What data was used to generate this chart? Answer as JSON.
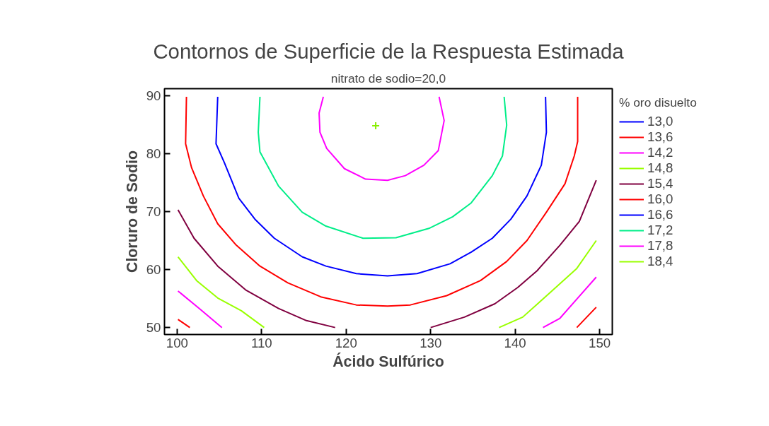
{
  "chart_data": {
    "type": "line",
    "title": "Contornos de Superficie de la Respuesta Estimada",
    "subtitle": "nitrato de sodio=20,0",
    "xlabel": "Ácido Sulfúrico",
    "ylabel": "Cloruro de Sodio",
    "legend_title": "% oro disuelto",
    "legend": "right",
    "grid": false,
    "xlim": [
      98.5,
      151.5
    ],
    "ylim": [
      48.8,
      91.2
    ],
    "xticks": [
      100,
      110,
      120,
      130,
      140,
      150
    ],
    "yticks": [
      50,
      60,
      70,
      80,
      90
    ],
    "series": [
      {
        "name": "13,0",
        "color": "#0000ff"
      },
      {
        "name": "13,6",
        "color": "#ff0000",
        "x": [
          100.1,
          101.5,
          null,
          147.3,
          149.6
        ],
        "values": [
          51.4,
          50.0,
          null,
          50.0,
          53.5
        ]
      },
      {
        "name": "14,2",
        "color": "#ff00ff",
        "x": [
          100.1,
          102.6,
          105.3,
          null,
          143.3,
          145.3,
          147.3,
          149.6
        ],
        "values": [
          56.3,
          53.3,
          50.0,
          null,
          50.0,
          51.6,
          54.9,
          58.7
        ]
      },
      {
        "name": "14,8",
        "color": "#99ff00",
        "x": [
          100.1,
          102.3,
          104.8,
          107.6,
          110.3,
          null,
          138.1,
          140.9,
          144.2,
          147.3,
          149.6
        ],
        "values": [
          62.2,
          58.1,
          55.1,
          52.9,
          50.0,
          null,
          50.0,
          51.8,
          56.1,
          60.2,
          65.0
        ]
      },
      {
        "name": "15,4",
        "color": "#800040",
        "x": [
          100.1,
          102.0,
          104.8,
          108.1,
          112.0,
          115.3,
          118.7,
          null,
          130.0,
          134.0,
          137.6,
          140.3,
          142.6,
          145.3,
          147.6,
          149.6
        ],
        "values": [
          70.3,
          65.4,
          60.6,
          56.5,
          53.3,
          51.2,
          50.0,
          null,
          50.0,
          51.8,
          54.1,
          56.9,
          59.8,
          64.2,
          68.3,
          75.4
        ]
      },
      {
        "name": "16,0",
        "color": "#ff0000",
        "x": [
          101.1,
          101.0,
          101.7,
          103.1,
          104.8,
          107.0,
          109.8,
          113.1,
          117.0,
          121.2,
          124.9,
          127.6,
          131.9,
          135.9,
          139.0,
          141.4,
          143.7,
          145.9,
          147.0,
          147.4,
          147.4
        ],
        "values": [
          89.8,
          81.7,
          77.6,
          72.7,
          67.9,
          64.2,
          60.6,
          57.7,
          55.3,
          53.9,
          53.7,
          53.9,
          55.5,
          58.1,
          61.4,
          65.0,
          69.9,
          74.8,
          79.6,
          82.1,
          89.8
        ]
      },
      {
        "name": "16,6",
        "color": "#0000ff",
        "x": [
          104.8,
          104.6,
          105.6,
          107.3,
          109.2,
          111.5,
          114.8,
          117.6,
          121.2,
          124.9,
          128.4,
          132.3,
          134.8,
          137.3,
          139.5,
          141.4,
          143.1,
          143.7,
          143.6
        ],
        "values": [
          89.8,
          81.7,
          78.4,
          72.3,
          68.7,
          65.4,
          62.2,
          60.6,
          59.3,
          58.9,
          59.3,
          61.0,
          63.0,
          65.4,
          68.7,
          72.7,
          78.0,
          83.7,
          89.8
        ]
      },
      {
        "name": "17,2",
        "color": "#00ee88",
        "x": [
          109.8,
          109.6,
          109.8,
          112.0,
          114.8,
          117.6,
          122.0,
          125.9,
          129.8,
          132.6,
          134.8,
          137.3,
          138.5,
          139.0,
          138.7
        ],
        "values": [
          89.8,
          83.7,
          80.3,
          74.4,
          69.9,
          67.5,
          65.4,
          65.5,
          67.1,
          69.1,
          71.5,
          76.2,
          79.6,
          84.9,
          89.8
        ]
      },
      {
        "name": "17,8",
        "color": "#ff00ff",
        "x": [
          117.3,
          116.8,
          116.9,
          117.7,
          119.8,
          122.3,
          124.9,
          127.0,
          129.2,
          130.9,
          131.6,
          131.0
        ],
        "values": [
          89.8,
          87.0,
          83.7,
          80.9,
          77.4,
          75.6,
          75.4,
          76.2,
          78.0,
          80.5,
          85.7,
          89.8
        ]
      },
      {
        "name": "18,4",
        "color": "#99ff00"
      },
      {
        "type": "scatter",
        "marker": "cross",
        "color": "#88ee00",
        "x": [
          123.5
        ],
        "values": [
          84.8
        ]
      }
    ]
  }
}
